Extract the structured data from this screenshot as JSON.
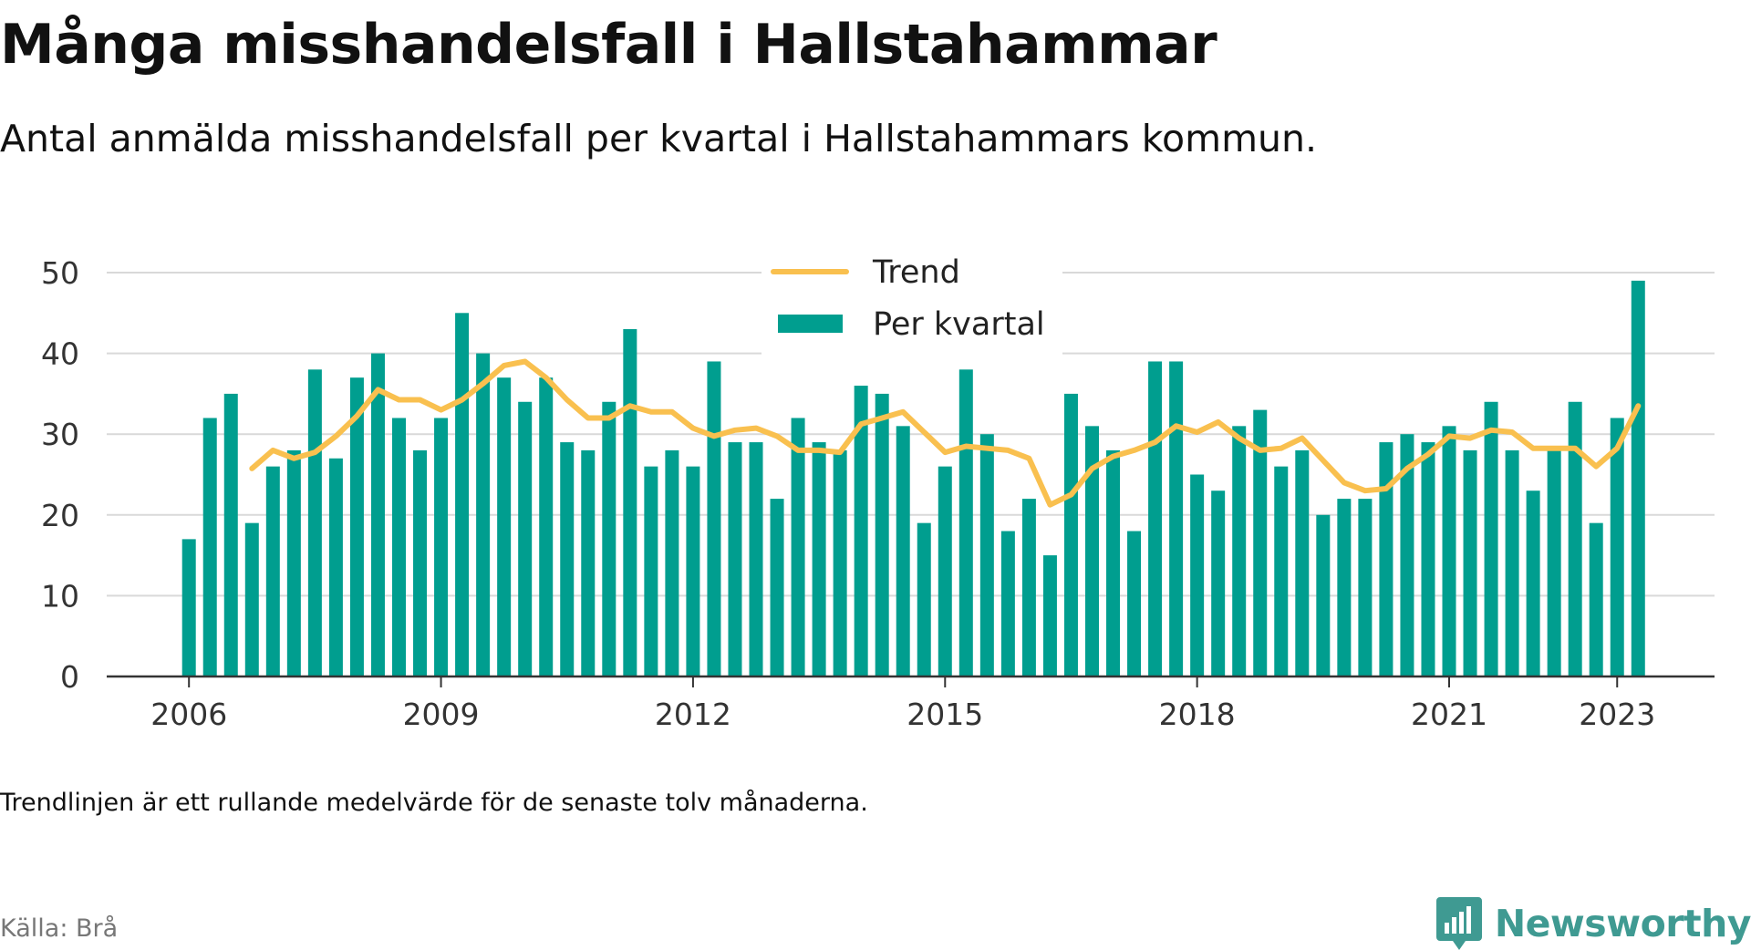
{
  "title": "Många misshandelsfall i Hallstahammar",
  "subtitle": "Antal anmälda misshandelsfall per kvartal i Hallstahammars kommun.",
  "note": "Trendlinjen är ett rullande medelvärde för de senaste tolv månaderna.",
  "source": "Källa: Brå",
  "brand": "Newsworthy",
  "colors": {
    "bar": "#009e8f",
    "trend": "#f9c04f",
    "grid": "#d9d9d9",
    "axis": "#333333",
    "brand": "#3f9a92"
  },
  "chart_data": {
    "type": "bar",
    "ylim": [
      0,
      50
    ],
    "yticks": [
      0,
      10,
      20,
      30,
      40,
      50
    ],
    "xticks": [
      "2006",
      "2009",
      "2012",
      "2015",
      "2018",
      "2021",
      "2023"
    ],
    "grid": true,
    "legend_position": "top-center",
    "x_start": "2006 Q1",
    "categories": [
      "2006 Q1",
      "2006 Q2",
      "2006 Q3",
      "2006 Q4",
      "2007 Q1",
      "2007 Q2",
      "2007 Q3",
      "2007 Q4",
      "2008 Q1",
      "2008 Q2",
      "2008 Q3",
      "2008 Q4",
      "2009 Q1",
      "2009 Q2",
      "2009 Q3",
      "2009 Q4",
      "2010 Q1",
      "2010 Q2",
      "2010 Q3",
      "2010 Q4",
      "2011 Q1",
      "2011 Q2",
      "2011 Q3",
      "2011 Q4",
      "2012 Q1",
      "2012 Q2",
      "2012 Q3",
      "2012 Q4",
      "2013 Q1",
      "2013 Q2",
      "2013 Q3",
      "2013 Q4",
      "2014 Q1",
      "2014 Q2",
      "2014 Q3",
      "2014 Q4",
      "2015 Q1",
      "2015 Q2",
      "2015 Q3",
      "2015 Q4",
      "2016 Q1",
      "2016 Q2",
      "2016 Q3",
      "2016 Q4",
      "2017 Q1",
      "2017 Q2",
      "2017 Q3",
      "2017 Q4",
      "2018 Q1",
      "2018 Q2",
      "2018 Q3",
      "2018 Q4",
      "2019 Q1",
      "2019 Q2",
      "2019 Q3",
      "2019 Q4",
      "2020 Q1",
      "2020 Q2",
      "2020 Q3",
      "2020 Q4",
      "2021 Q1",
      "2021 Q2",
      "2021 Q3",
      "2021 Q4",
      "2022 Q1",
      "2022 Q2",
      "2022 Q3",
      "2022 Q4",
      "2023 Q1",
      "2023 Q2"
    ],
    "series": [
      {
        "name": "Per kvartal",
        "type": "bar",
        "values": [
          17,
          32,
          35,
          19,
          26,
          28,
          38,
          27,
          37,
          40,
          32,
          28,
          32,
          45,
          40,
          37,
          34,
          37,
          29,
          28,
          34,
          43,
          26,
          28,
          26,
          39,
          29,
          29,
          22,
          32,
          29,
          28,
          36,
          35,
          31,
          19,
          26,
          38,
          30,
          18,
          22,
          15,
          35,
          31,
          28,
          18,
          39,
          39,
          25,
          23,
          31,
          33,
          26,
          28,
          20,
          22,
          22,
          29,
          30,
          29,
          31,
          28,
          34,
          28,
          23,
          28,
          34,
          19,
          32,
          49
        ]
      },
      {
        "name": "Trend",
        "type": "line",
        "values": [
          null,
          null,
          null,
          25.75,
          28.0,
          27.0,
          27.75,
          29.75,
          32.25,
          35.5,
          34.25,
          34.25,
          33.0,
          34.25,
          36.25,
          38.5,
          39.0,
          37.0,
          34.25,
          32.0,
          32.0,
          33.5,
          32.75,
          32.75,
          30.75,
          29.75,
          30.5,
          30.75,
          29.75,
          28.0,
          28.0,
          27.75,
          31.25,
          32.0,
          32.75,
          30.25,
          27.75,
          28.5,
          28.25,
          28.0,
          27.0,
          21.25,
          22.5,
          25.75,
          27.25,
          28.0,
          29.0,
          31.0,
          30.25,
          31.5,
          29.5,
          28.0,
          28.25,
          29.5,
          26.75,
          24.0,
          23.0,
          23.25,
          25.75,
          27.5,
          29.75,
          29.5,
          30.5,
          30.25,
          28.25,
          28.25,
          28.25,
          26.0,
          28.25,
          33.5
        ]
      }
    ]
  }
}
